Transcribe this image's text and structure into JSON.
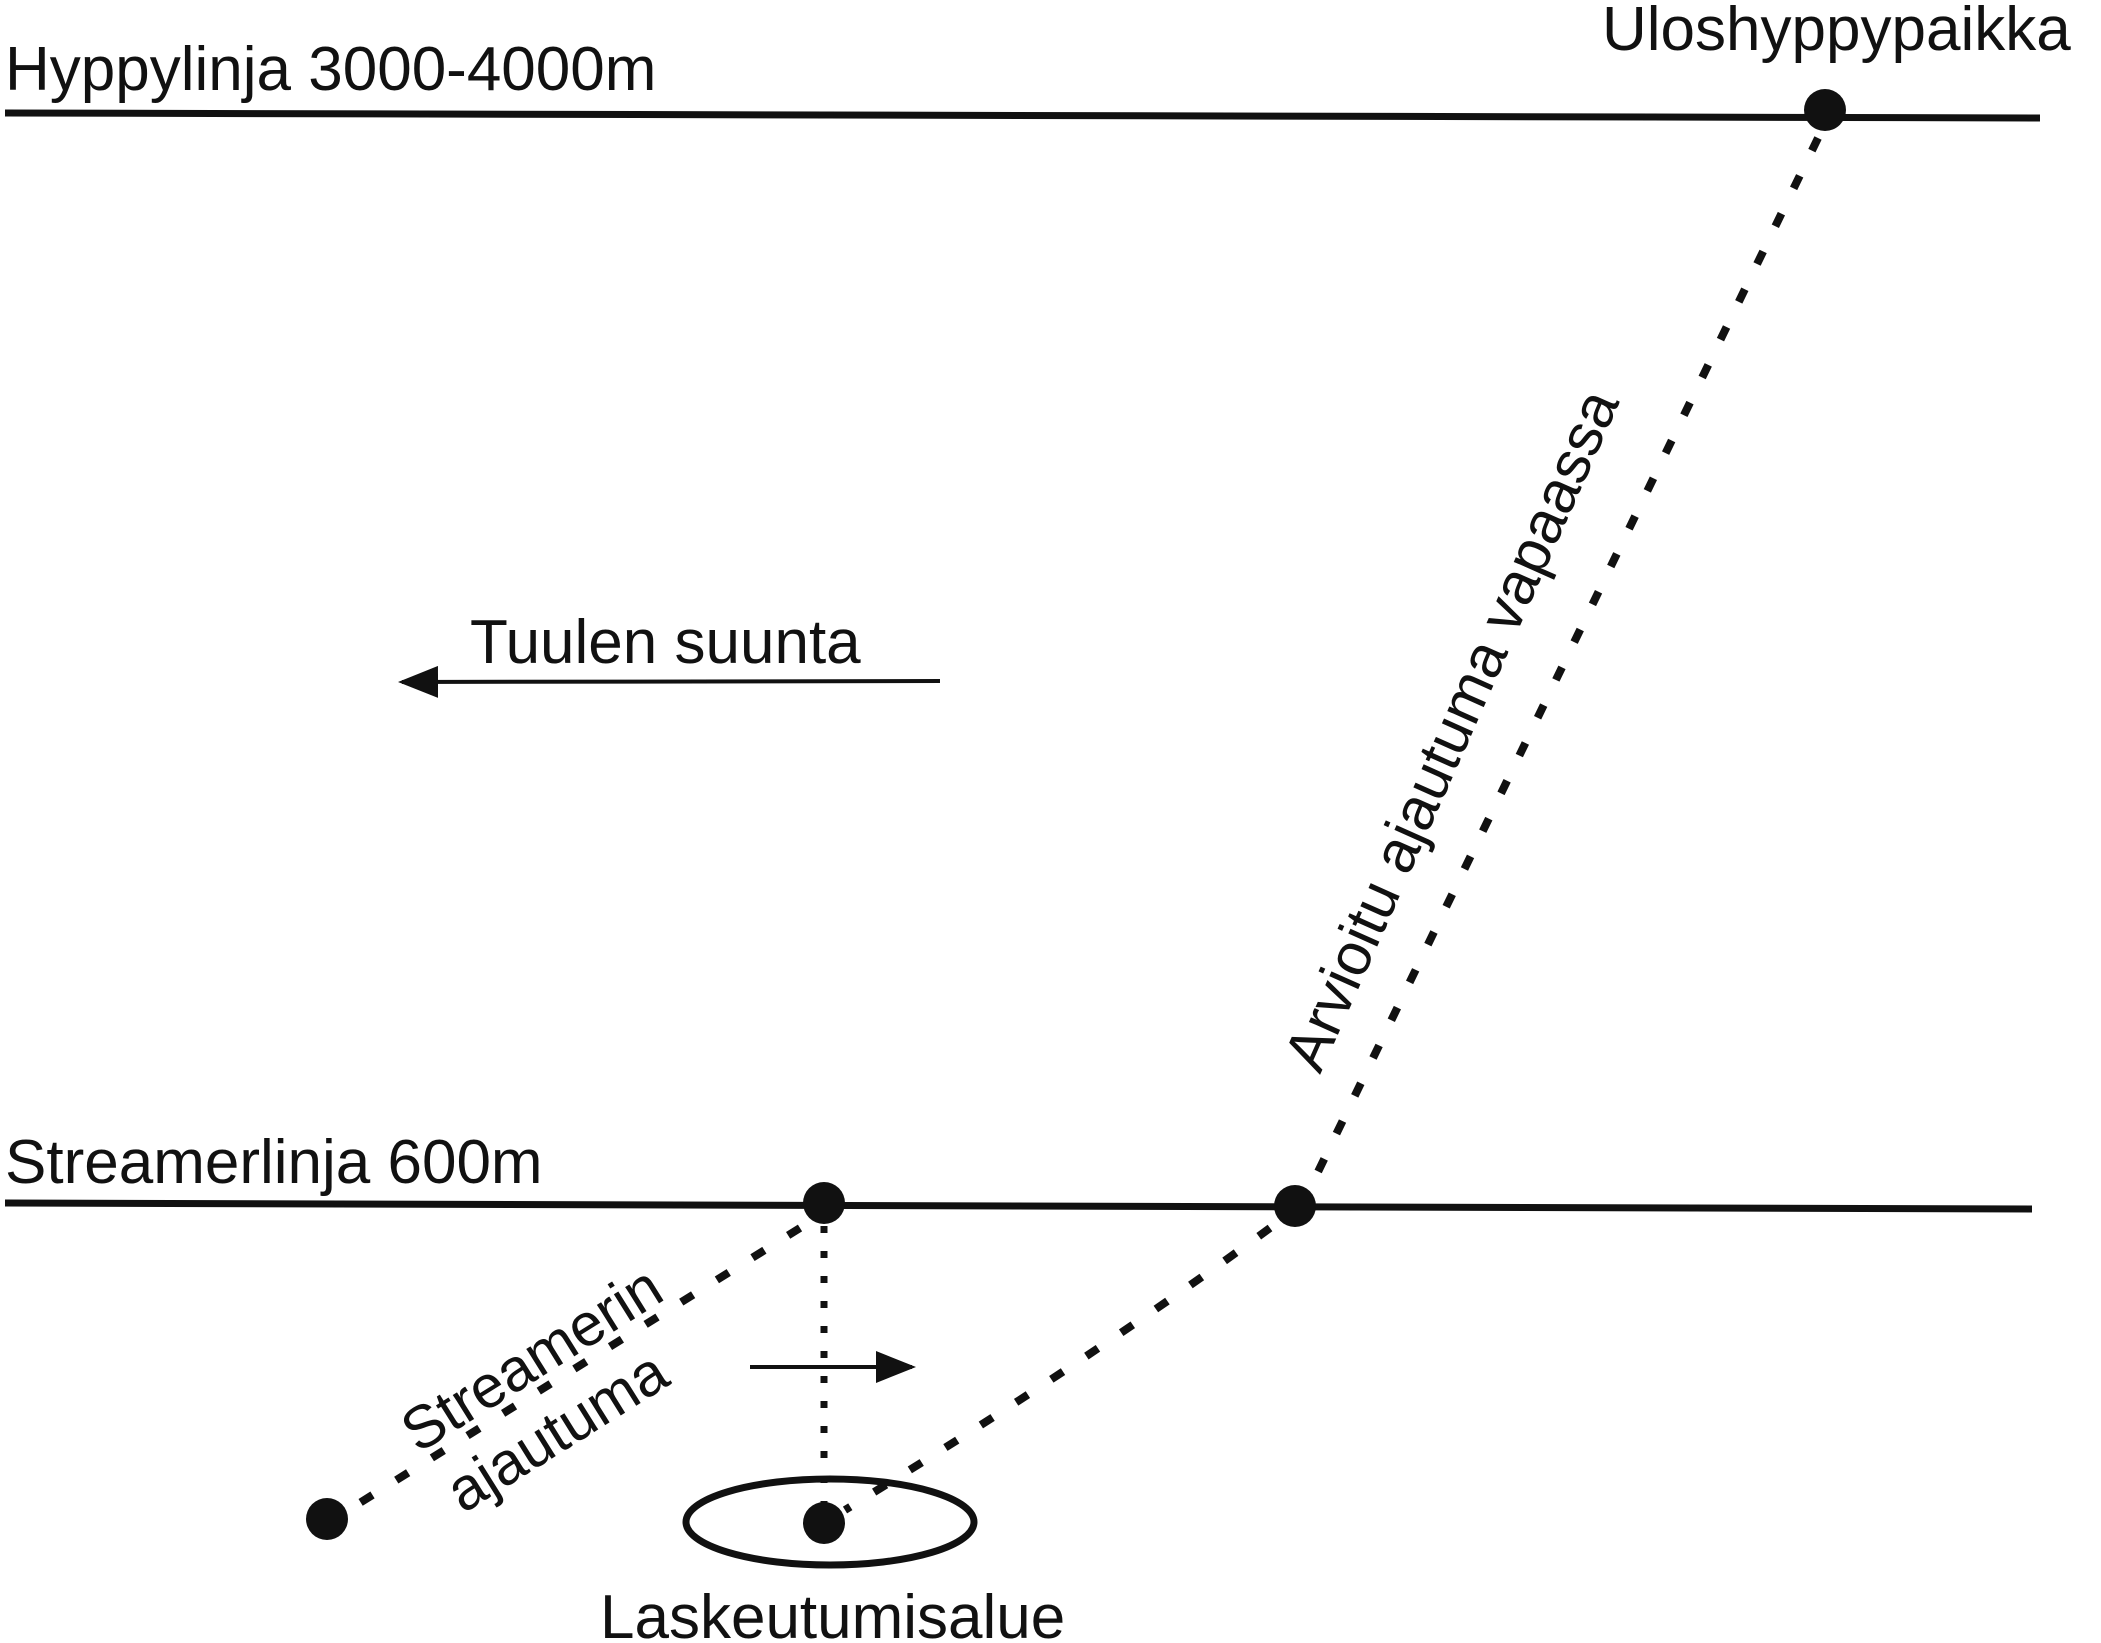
{
  "labels": {
    "jump_line": "Hyppylinja 3000-4000m",
    "exit_point": "Uloshyppypaikka",
    "wind_direction": "Tuulen suunta",
    "freefall_drift": "Arvioitu ajautuma vapaassa",
    "streamer_line": "Streamerlinja 600m",
    "streamer_drift_line1": "Streamerin",
    "streamer_drift_line2": "ajautuma",
    "landing_area": "Laskeutumisalue"
  },
  "colors": {
    "ink": "#111111",
    "background": "#ffffff"
  }
}
